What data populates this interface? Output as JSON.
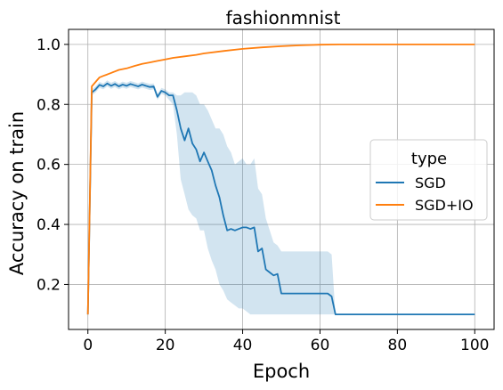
{
  "chart_data": {
    "type": "line",
    "title": "fashionmnist",
    "xlabel": "Epoch",
    "ylabel": "Accuracy on train",
    "xlim": [
      -5,
      105
    ],
    "ylim": [
      0.05,
      1.05
    ],
    "x_ticks": [
      0,
      20,
      40,
      60,
      80,
      100
    ],
    "y_ticks": [
      0.2,
      0.4,
      0.6,
      0.8,
      1.0
    ],
    "x_tick_labels": [
      "0",
      "20",
      "40",
      "60",
      "80",
      "100"
    ],
    "y_tick_labels": [
      "0.2",
      "0.4",
      "0.6",
      "0.8",
      "1.0"
    ],
    "grid": true,
    "legend": {
      "title": "type",
      "position": "center-right"
    },
    "series": [
      {
        "name": "SGD",
        "color": "#1f77b4",
        "x": [
          0,
          1,
          2,
          3,
          4,
          5,
          6,
          7,
          8,
          9,
          10,
          11,
          12,
          13,
          14,
          15,
          16,
          17,
          18,
          19,
          20,
          21,
          22,
          23,
          24,
          25,
          26,
          27,
          28,
          29,
          30,
          31,
          32,
          33,
          34,
          35,
          36,
          37,
          38,
          39,
          40,
          41,
          42,
          43,
          44,
          45,
          46,
          47,
          48,
          49,
          50,
          52,
          54,
          56,
          58,
          60,
          62,
          63,
          64,
          70,
          80,
          90,
          100
        ],
        "y": [
          0.1,
          0.84,
          0.85,
          0.865,
          0.86,
          0.87,
          0.862,
          0.868,
          0.86,
          0.866,
          0.862,
          0.868,
          0.864,
          0.86,
          0.866,
          0.862,
          0.858,
          0.86,
          0.825,
          0.845,
          0.84,
          0.83,
          0.83,
          0.78,
          0.72,
          0.68,
          0.72,
          0.67,
          0.65,
          0.61,
          0.64,
          0.61,
          0.58,
          0.53,
          0.49,
          0.43,
          0.38,
          0.385,
          0.38,
          0.385,
          0.39,
          0.39,
          0.385,
          0.39,
          0.31,
          0.32,
          0.25,
          0.24,
          0.23,
          0.235,
          0.17,
          0.17,
          0.17,
          0.17,
          0.17,
          0.17,
          0.17,
          0.16,
          0.1,
          0.1,
          0.1,
          0.1,
          0.1
        ],
        "lower": [
          0.1,
          0.83,
          0.84,
          0.855,
          0.85,
          0.86,
          0.852,
          0.858,
          0.85,
          0.856,
          0.852,
          0.858,
          0.854,
          0.85,
          0.856,
          0.852,
          0.848,
          0.85,
          0.815,
          0.835,
          0.83,
          0.815,
          0.8,
          0.7,
          0.55,
          0.5,
          0.45,
          0.43,
          0.42,
          0.38,
          0.38,
          0.32,
          0.28,
          0.25,
          0.2,
          0.18,
          0.15,
          0.14,
          0.13,
          0.12,
          0.12,
          0.11,
          0.1,
          0.1,
          0.1,
          0.1,
          0.1,
          0.1,
          0.1,
          0.1,
          0.1,
          0.1,
          0.1,
          0.1,
          0.1,
          0.1,
          0.1,
          0.1,
          0.1,
          0.1,
          0.1,
          0.1,
          0.1
        ],
        "upper": [
          0.1,
          0.85,
          0.86,
          0.875,
          0.87,
          0.88,
          0.872,
          0.878,
          0.87,
          0.876,
          0.872,
          0.878,
          0.874,
          0.87,
          0.876,
          0.872,
          0.868,
          0.87,
          0.835,
          0.855,
          0.85,
          0.84,
          0.84,
          0.83,
          0.83,
          0.84,
          0.84,
          0.84,
          0.83,
          0.8,
          0.8,
          0.78,
          0.75,
          0.72,
          0.72,
          0.7,
          0.66,
          0.64,
          0.6,
          0.61,
          0.62,
          0.6,
          0.6,
          0.62,
          0.52,
          0.5,
          0.42,
          0.38,
          0.34,
          0.33,
          0.31,
          0.31,
          0.31,
          0.31,
          0.31,
          0.31,
          0.31,
          0.3,
          0.1,
          0.1,
          0.1,
          0.1,
          0.1
        ]
      },
      {
        "name": "SGD+IO",
        "color": "#ff7f0e",
        "x": [
          0,
          1,
          2,
          3,
          4,
          5,
          6,
          8,
          10,
          12,
          14,
          16,
          18,
          20,
          22,
          25,
          28,
          30,
          35,
          40,
          45,
          50,
          55,
          60,
          65,
          70,
          80,
          90,
          100
        ],
        "y": [
          0.1,
          0.86,
          0.875,
          0.89,
          0.895,
          0.9,
          0.905,
          0.915,
          0.92,
          0.928,
          0.935,
          0.94,
          0.945,
          0.95,
          0.955,
          0.96,
          0.965,
          0.97,
          0.978,
          0.985,
          0.99,
          0.994,
          0.997,
          0.999,
          1.0,
          1.0,
          1.0,
          1.0,
          1.0
        ]
      }
    ]
  }
}
